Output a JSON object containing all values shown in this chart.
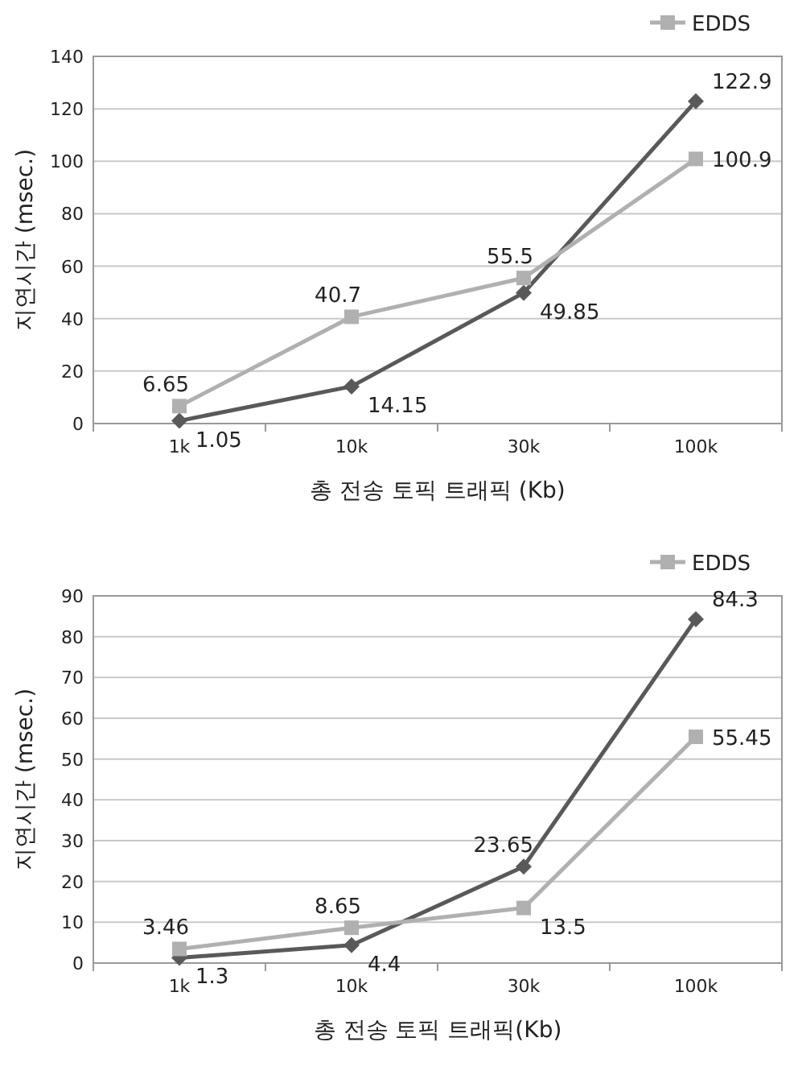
{
  "chart_data": [
    {
      "type": "line",
      "categories": [
        "1k",
        "10k",
        "30k",
        "100k"
      ],
      "xlabel": "총 전송 토픽 트래픽 (Kb)",
      "ylabel": "지연시간 (msec.)",
      "ylim": [
        0,
        140
      ],
      "yticks": [
        0,
        20,
        40,
        60,
        80,
        100,
        120,
        140
      ],
      "grid": "y",
      "legend": "top right",
      "data_labels": true,
      "series": [
        {
          "color": "#595959",
          "marker": "diamond",
          "values": [
            1.05,
            14.15,
            49.85,
            122.9
          ]
        },
        {
          "name": "EDDS",
          "color": "#b0b0b0",
          "marker": "square",
          "values": [
            6.65,
            40.7,
            55.5,
            100.9
          ]
        }
      ]
    },
    {
      "type": "line",
      "categories": [
        "1k",
        "10k",
        "30k",
        "100k"
      ],
      "xlabel": "총 전송 토픽 트래픽(Kb)",
      "ylabel": "지연시간 (msec.)",
      "ylim": [
        0,
        90
      ],
      "yticks": [
        0,
        10,
        20,
        30,
        40,
        50,
        60,
        70,
        80,
        90
      ],
      "grid": "y",
      "legend": "top right",
      "data_labels": true,
      "series": [
        {
          "color": "#595959",
          "marker": "diamond",
          "values": [
            1.3,
            4.4,
            23.65,
            84.3
          ]
        },
        {
          "name": "EDDS",
          "color": "#b0b0b0",
          "marker": "square",
          "values": [
            3.46,
            8.65,
            13.5,
            55.45
          ]
        }
      ]
    }
  ]
}
